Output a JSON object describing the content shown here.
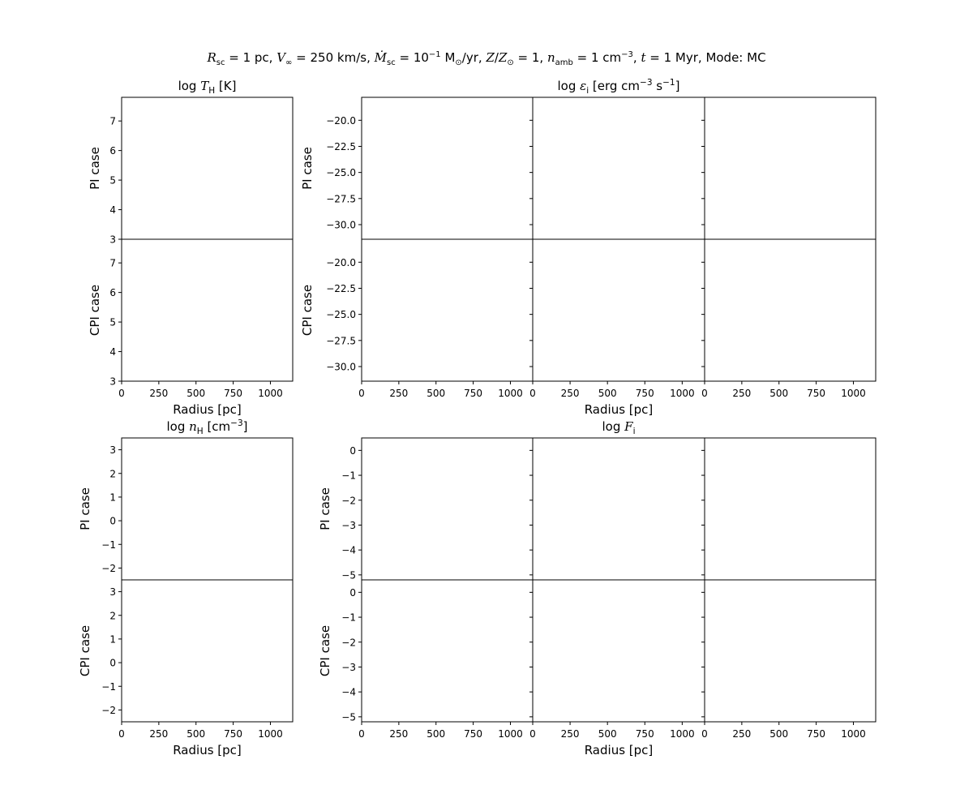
{
  "suptitle": {
    "r_sc_val": "1 pc",
    "v_inf_val": "250 km/s",
    "mdot_val": "10",
    "mdot_exp": "−1",
    "mdot_unit": "M",
    "mdot_unit2": "/yr",
    "z_val": "1",
    "namb_val": "1 cm",
    "namb_exp": "−3",
    "t_val": "1 Myr",
    "mode": "Mode: MC"
  },
  "colors": {
    "axes": "#000000",
    "background": "#ffffff"
  },
  "chart_data": [
    {
      "type": "line",
      "title": "log T_H [K]",
      "rows": [
        {
          "ylabel": "PI case",
          "ylim": [
            3,
            7.8
          ],
          "yticks": [
            "7",
            "6",
            "5",
            "4",
            "3"
          ],
          "series": []
        },
        {
          "ylabel": "CPI case",
          "ylim": [
            3,
            7.8
          ],
          "yticks": [
            "7",
            "6",
            "5",
            "4",
            "3"
          ],
          "series": []
        }
      ],
      "xlim": [
        0,
        1150
      ],
      "xticks": [
        "0",
        "250",
        "500",
        "750",
        "1000"
      ],
      "xlabel": "Radius [pc]"
    },
    {
      "type": "line",
      "title": "log ε_i [erg cm^-3 s^-1]",
      "columns": 3,
      "rows": [
        {
          "ylabel": "PI case",
          "ylim": [
            -31.4,
            -17.8
          ],
          "yticks": [
            "−20.0",
            "−22.5",
            "−25.0",
            "−27.5",
            "−30.0"
          ],
          "series": []
        },
        {
          "ylabel": "CPI case",
          "ylim": [
            -31.4,
            -17.8
          ],
          "yticks": [
            "−20.0",
            "−22.5",
            "−25.0",
            "−27.5",
            "−30.0"
          ],
          "series": []
        }
      ],
      "xlim": [
        0,
        1150
      ],
      "xticks": [
        "0",
        "250",
        "500",
        "750",
        "1000"
      ],
      "xlabel": "Radius [pc]"
    },
    {
      "type": "line",
      "title": "log n_H [cm^-3]",
      "rows": [
        {
          "ylabel": "PI case",
          "ylim": [
            -2.5,
            3.5
          ],
          "yticks": [
            "3",
            "2",
            "1",
            "0",
            "−1",
            "−2"
          ],
          "series": []
        },
        {
          "ylabel": "CPI case",
          "ylim": [
            -2.5,
            3.5
          ],
          "yticks": [
            "3",
            "2",
            "1",
            "0",
            "−1",
            "−2"
          ],
          "series": []
        }
      ],
      "xlim": [
        0,
        1150
      ],
      "xticks": [
        "0",
        "250",
        "500",
        "750",
        "1000"
      ],
      "xlabel": "Radius [pc]"
    },
    {
      "type": "line",
      "title": "log F_i",
      "columns": 3,
      "rows": [
        {
          "ylabel": "PI case",
          "ylim": [
            -5.2,
            0.5
          ],
          "yticks": [
            "0",
            "−1",
            "−2",
            "−3",
            "−4",
            "−5"
          ],
          "series": []
        },
        {
          "ylabel": "CPI case",
          "ylim": [
            -5.2,
            0.5
          ],
          "yticks": [
            "0",
            "−1",
            "−2",
            "−3",
            "−4",
            "−5"
          ],
          "series": []
        }
      ],
      "xlim": [
        0,
        1150
      ],
      "xticks": [
        "0",
        "250",
        "500",
        "750",
        "1000"
      ],
      "xlabel": "Radius [pc]"
    }
  ]
}
